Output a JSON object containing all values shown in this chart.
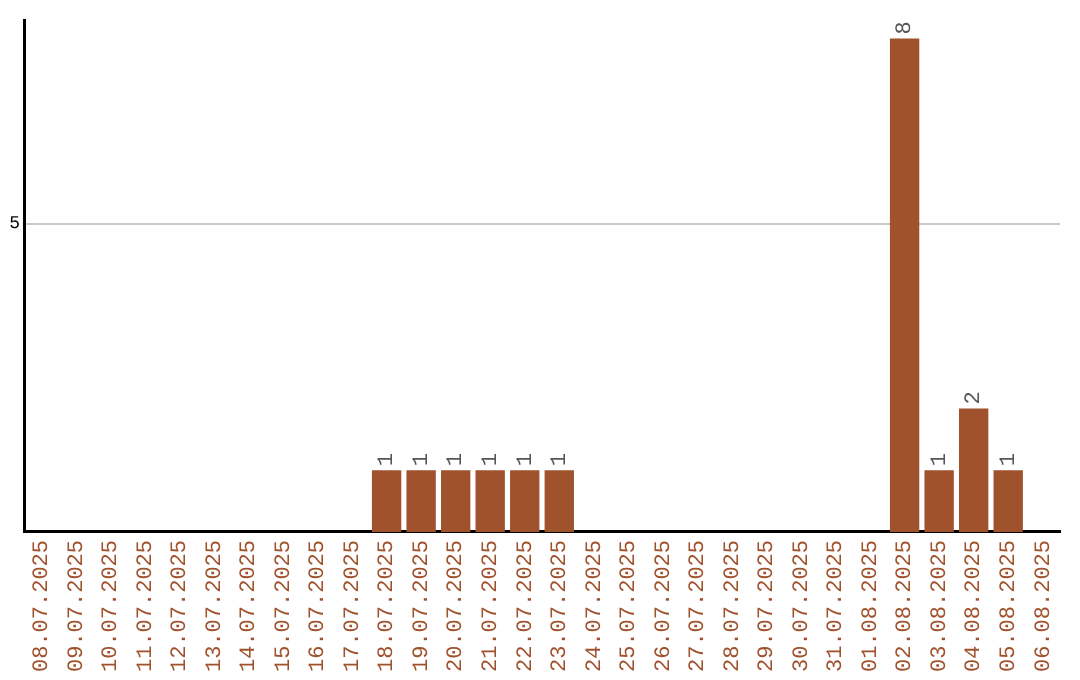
{
  "chart_data": {
    "type": "bar",
    "categories": [
      "08.07.2025",
      "09.07.2025",
      "10.07.2025",
      "11.07.2025",
      "12.07.2025",
      "13.07.2025",
      "14.07.2025",
      "15.07.2025",
      "16.07.2025",
      "17.07.2025",
      "18.07.2025",
      "19.07.2025",
      "20.07.2025",
      "21.07.2025",
      "22.07.2025",
      "23.07.2025",
      "24.07.2025",
      "25.07.2025",
      "26.07.2025",
      "27.07.2025",
      "28.07.2025",
      "29.07.2025",
      "30.07.2025",
      "31.07.2025",
      "01.08.2025",
      "02.08.2025",
      "03.08.2025",
      "04.08.2025",
      "05.08.2025",
      "06.08.2025"
    ],
    "values": [
      0,
      0,
      0,
      0,
      0,
      0,
      0,
      0,
      0,
      0,
      1,
      1,
      1,
      1,
      1,
      1,
      0,
      0,
      0,
      0,
      0,
      0,
      0,
      0,
      0,
      8,
      1,
      2,
      1,
      0
    ],
    "value_labels": [
      null,
      null,
      null,
      null,
      null,
      null,
      null,
      null,
      null,
      null,
      "1",
      "1",
      "1",
      "1",
      "1",
      "1",
      null,
      null,
      null,
      null,
      null,
      null,
      null,
      null,
      null,
      "8",
      "1",
      "2",
      "1",
      null
    ],
    "color": "#a0522d",
    "ylim": [
      0,
      8.3
    ],
    "yticks": [
      5
    ],
    "grid": "y",
    "legend": false
  }
}
